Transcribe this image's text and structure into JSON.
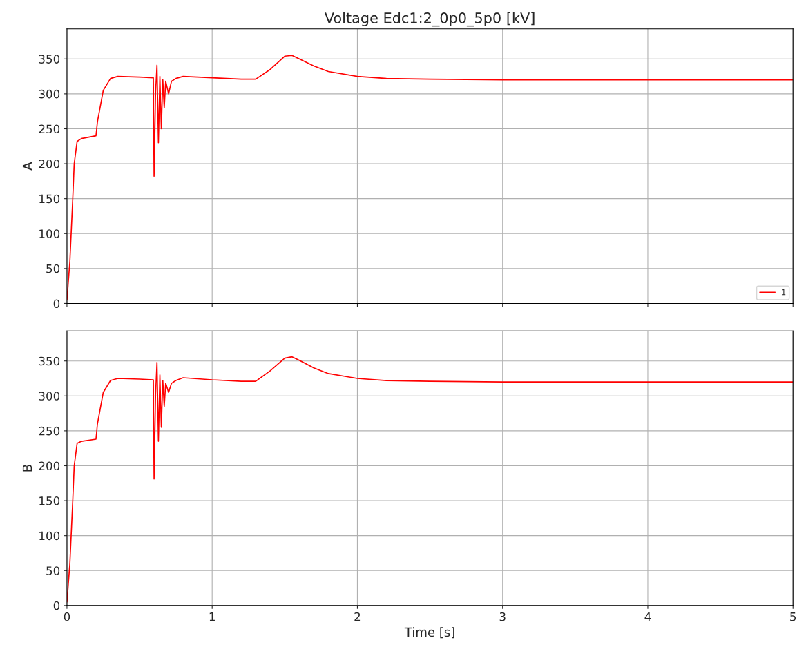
{
  "chart_data": [
    {
      "type": "line",
      "title": "Voltage Edc1:2_0p0_5p0 [kV]",
      "ylabel": "A",
      "xlim": [
        0,
        5
      ],
      "ylim": [
        0,
        393
      ],
      "xticks": [
        0,
        1,
        2,
        3,
        4,
        5
      ],
      "yticks": [
        0,
        50,
        100,
        150,
        200,
        250,
        300,
        350
      ],
      "grid": true,
      "legend": "bottom right",
      "tick_labels": "y",
      "series": [
        {
          "name": "1",
          "color": "#ff0000",
          "x": [
            0,
            0.02,
            0.04,
            0.05,
            0.07,
            0.1,
            0.2,
            0.21,
            0.25,
            0.3,
            0.35,
            0.5,
            0.595,
            0.6,
            0.61,
            0.62,
            0.63,
            0.64,
            0.65,
            0.66,
            0.67,
            0.68,
            0.7,
            0.72,
            0.75,
            0.8,
            1.0,
            1.2,
            1.3,
            1.4,
            1.5,
            1.55,
            1.6,
            1.7,
            1.8,
            2.0,
            2.2,
            2.5,
            3,
            4,
            5
          ],
          "values": [
            5,
            60,
            150,
            200,
            232,
            236,
            240,
            260,
            305,
            322,
            325,
            324,
            323,
            182,
            300,
            341,
            230,
            325,
            250,
            320,
            280,
            318,
            300,
            318,
            322,
            325,
            323,
            321,
            321,
            335,
            354,
            355,
            350,
            340,
            332,
            325,
            322,
            321,
            320,
            320,
            320
          ]
        }
      ]
    },
    {
      "type": "line",
      "ylabel": "B",
      "xlabel": "Time [s]",
      "xlim": [
        0,
        5
      ],
      "ylim": [
        0,
        393
      ],
      "xticks": [
        0,
        1,
        2,
        3,
        4,
        5
      ],
      "yticks": [
        0,
        50,
        100,
        150,
        200,
        250,
        300,
        350
      ],
      "grid": true,
      "series": [
        {
          "color": "#ff0000",
          "x": [
            0,
            0.02,
            0.04,
            0.05,
            0.07,
            0.1,
            0.2,
            0.21,
            0.25,
            0.3,
            0.35,
            0.5,
            0.595,
            0.6,
            0.61,
            0.62,
            0.63,
            0.64,
            0.65,
            0.66,
            0.67,
            0.68,
            0.7,
            0.72,
            0.75,
            0.8,
            1.0,
            1.2,
            1.3,
            1.4,
            1.5,
            1.55,
            1.6,
            1.7,
            1.8,
            2.0,
            2.2,
            2.5,
            3,
            4,
            5
          ],
          "values": [
            5,
            60,
            150,
            200,
            232,
            235,
            238,
            260,
            305,
            322,
            325,
            324,
            323,
            181,
            300,
            348,
            235,
            330,
            255,
            322,
            285,
            318,
            305,
            318,
            322,
            326,
            323,
            321,
            321,
            336,
            354,
            356,
            351,
            340,
            332,
            325,
            322,
            321,
            320,
            320,
            320
          ]
        }
      ]
    }
  ]
}
